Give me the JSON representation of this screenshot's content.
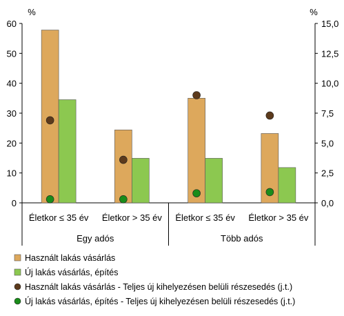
{
  "chart_data": {
    "type": "bar",
    "left_axis": {
      "unit": "%",
      "min": 0,
      "max": 60,
      "ticks": [
        "0",
        "10",
        "20",
        "30",
        "40",
        "50",
        "60"
      ]
    },
    "right_axis": {
      "unit": "%",
      "min": 0,
      "max": 15,
      "ticks": [
        "0,0",
        "2,5",
        "5,0",
        "7,5",
        "10,0",
        "12,5",
        "15,0"
      ]
    },
    "groups": [
      {
        "label": "Egy adós",
        "categories": [
          "Életkor ≤ 35 év",
          "Életkor > 35 év"
        ]
      },
      {
        "label": "Több adós",
        "categories": [
          "Életkor ≤ 35 év",
          "Életkor > 35 év"
        ]
      }
    ],
    "categories": [
      "Életkor ≤ 35 év",
      "Életkor > 35 év",
      "Életkor ≤ 35 év",
      "Életkor > 35 év"
    ],
    "series": [
      {
        "name": "Használt lakás vásárlás",
        "kind": "bar",
        "axis": "left",
        "color": "#dda85c",
        "values": [
          57.8,
          24.4,
          35.0,
          23.2
        ]
      },
      {
        "name": "Új lakás vásárlás, építés",
        "kind": "bar",
        "axis": "left",
        "color": "#8cc850",
        "values": [
          34.5,
          14.9,
          14.9,
          11.8
        ]
      },
      {
        "name": "Használt lakás vásárlás - Teljes új kihelyezésen belüli részesedés (j.t.)",
        "kind": "marker",
        "axis": "right",
        "color": "#5c3a1c",
        "values": [
          6.9,
          3.6,
          9.0,
          7.3
        ]
      },
      {
        "name": "Új lakás vásárlás, építés - Teljes új kihelyezésen belüli részesedés (j.t.)",
        "kind": "marker",
        "axis": "right",
        "color": "#1a8c1a",
        "values": [
          0.3,
          0.3,
          0.8,
          0.9
        ]
      }
    ],
    "grid": false,
    "legend_position": "bottom"
  }
}
